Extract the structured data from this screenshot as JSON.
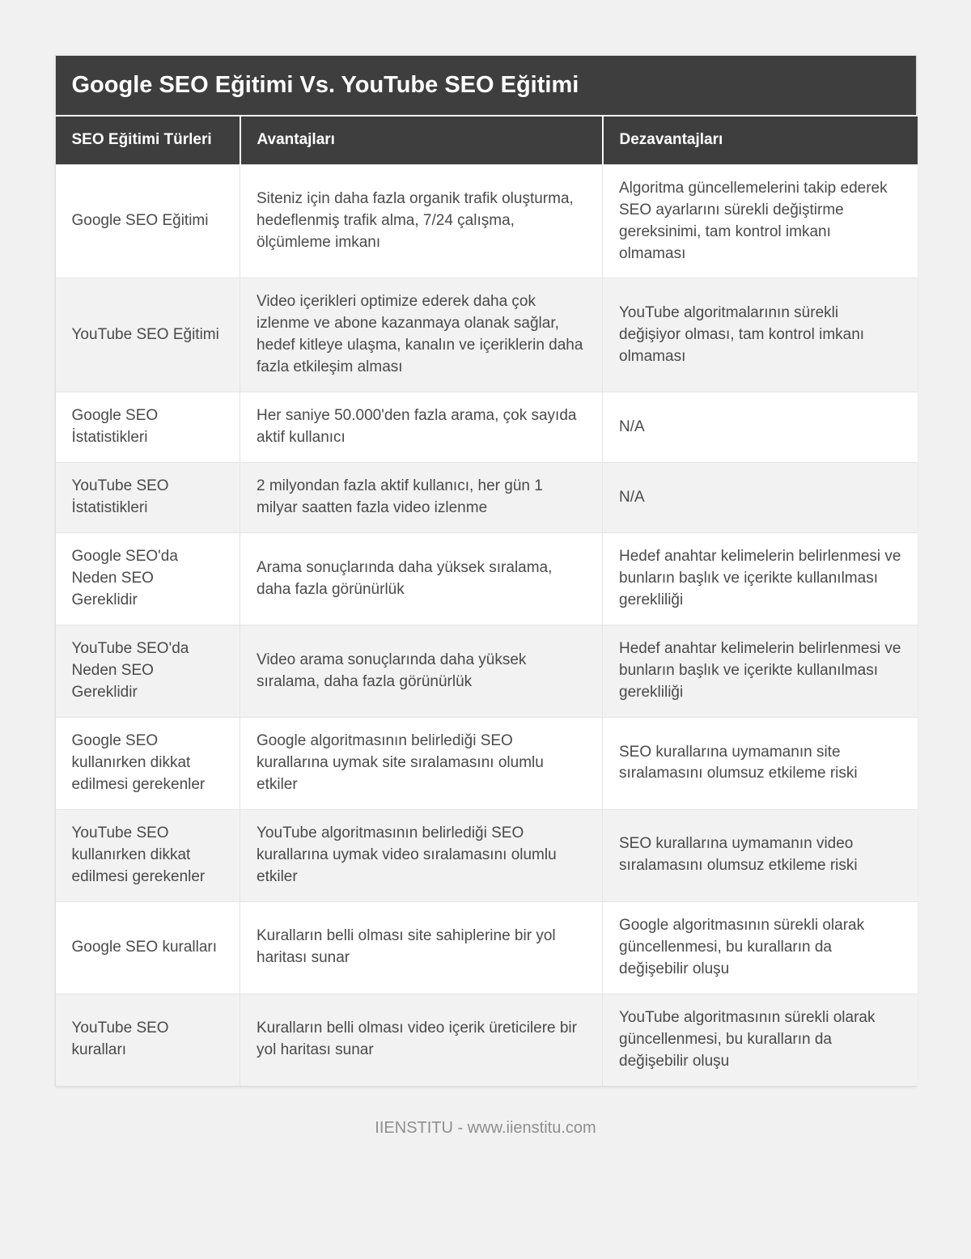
{
  "title": "Google SEO Eğitimi Vs. YouTube SEO Eğitimi",
  "table": {
    "columns": [
      "SEO Eğitimi Türleri",
      "Avantajları",
      "Dezavantajları"
    ],
    "rows": [
      {
        "type": "Google SEO Eğitimi",
        "advantages": "Siteniz için daha fazla organik trafik oluşturma, hedeflenmiş trafik alma, 7/24 çalışma, ölçümleme imkanı",
        "disadvantages": "Algoritma güncellemelerini takip ederek SEO ayarlarını sürekli değiştirme gereksinimi, tam kontrol imkanı olmaması"
      },
      {
        "type": "YouTube SEO Eğitimi",
        "advantages": "Video içerikleri optimize ederek daha çok izlenme ve abone kazanmaya olanak sağlar, hedef kitleye ulaşma, kanalın ve içeriklerin daha fazla etkileşim alması",
        "disadvantages": "YouTube algoritmalarının sürekli değişiyor olması, tam kontrol imkanı olmaması"
      },
      {
        "type": "Google SEO İstatistikleri",
        "advantages": "Her saniye 50.000'den fazla arama, çok sayıda aktif kullanıcı",
        "disadvantages": "N/A"
      },
      {
        "type": "YouTube SEO İstatistikleri",
        "advantages": "2 milyondan fazla aktif kullanıcı, her gün 1 milyar saatten fazla video izlenme",
        "disadvantages": "N/A"
      },
      {
        "type": "Google SEO'da Neden SEO Gereklidir",
        "advantages": "Arama sonuçlarında daha yüksek sıralama, daha fazla görünürlük",
        "disadvantages": "Hedef anahtar kelimelerin belirlenmesi ve bunların başlık ve içerikte kullanılması gerekliliği"
      },
      {
        "type": "YouTube SEO'da Neden SEO Gereklidir",
        "advantages": "Video arama sonuçlarında daha yüksek sıralama, daha fazla görünürlük",
        "disadvantages": "Hedef anahtar kelimelerin belirlenmesi ve bunların başlık ve içerikte kullanılması gerekliliği"
      },
      {
        "type": "Google SEO kullanırken dikkat edilmesi gerekenler",
        "advantages": "Google algoritmasının belirlediği SEO kurallarına uymak site sıralamasını olumlu etkiler",
        "disadvantages": "SEO kurallarına uymamanın site sıralamasını olumsuz etkileme riski"
      },
      {
        "type": "YouTube SEO kullanırken dikkat edilmesi gerekenler",
        "advantages": "YouTube algoritmasının belirlediği SEO kurallarına uymak video sıralamasını olumlu etkiler",
        "disadvantages": "SEO kurallarına uymamanın video sıralamasını olumsuz etkileme riski"
      },
      {
        "type": "Google SEO kuralları",
        "advantages": "Kuralların belli olması site sahiplerine bir yol haritası sunar",
        "disadvantages": "Google algoritmasının sürekli olarak güncellenmesi, bu kuralların da değişebilir oluşu"
      },
      {
        "type": "YouTube SEO kuralları",
        "advantages": "Kuralların belli olması video içerik üreticilere bir yol haritası sunar",
        "disadvantages": "YouTube algoritmasının sürekli olarak güncellenmesi, bu kuralların da değişebilir oluşu"
      }
    ]
  },
  "footer": {
    "text": "IIENSTITU - www.iienstitu.com"
  },
  "colors": {
    "header_bg": "#3e3e3e",
    "header_text": "#ffffff",
    "row_alt_bg": "#f2f2f2",
    "body_text": "#4a4a4a",
    "page_bg": "#f1f1f1",
    "border": "#e4e4e4",
    "footer_text": "#8f8f8f"
  }
}
